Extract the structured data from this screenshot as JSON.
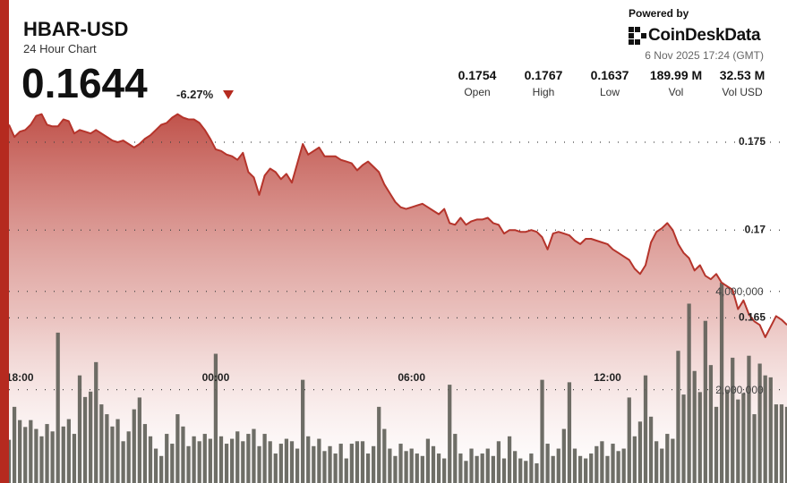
{
  "header": {
    "title": "HBAR-USD",
    "subtitle": "24 Hour Chart",
    "price": "0.1644",
    "change": "-6.27%",
    "powered_by": "Powered by",
    "brand_a": "CoinDesk",
    "brand_b": "Data",
    "timestamp": "6 Nov 2025 17:24 (GMT)"
  },
  "stats": [
    {
      "value": "0.1754",
      "label": "Open"
    },
    {
      "value": "0.1767",
      "label": "High"
    },
    {
      "value": "0.1637",
      "label": "Low"
    },
    {
      "value": "189.99 M",
      "label": "Vol"
    },
    {
      "value": "32.53 M",
      "label": "Vol USD"
    }
  ],
  "chart_data": {
    "type": "line",
    "categories": [
      null,
      null,
      "18:00",
      null,
      null,
      null,
      null,
      null,
      null,
      null,
      null,
      null,
      null,
      null,
      null,
      null,
      null,
      null,
      null,
      null,
      null,
      null,
      null,
      null,
      null,
      null,
      null,
      null,
      null,
      null,
      null,
      null,
      null,
      null,
      null,
      null,
      null,
      null,
      "00:00",
      null,
      null,
      null,
      null,
      null,
      null,
      null,
      null,
      null,
      null,
      null,
      null,
      null,
      null,
      null,
      null,
      null,
      null,
      null,
      null,
      null,
      null,
      null,
      null,
      null,
      null,
      null,
      null,
      null,
      null,
      null,
      null,
      null,
      null,
      null,
      "06:00",
      null,
      null,
      null,
      null,
      null,
      null,
      null,
      null,
      null,
      null,
      null,
      null,
      null,
      null,
      null,
      null,
      null,
      null,
      null,
      null,
      null,
      null,
      null,
      null,
      null,
      null,
      null,
      null,
      null,
      null,
      null,
      null,
      null,
      null,
      null,
      "12:00",
      null,
      null,
      null,
      null,
      null,
      null,
      null,
      null,
      null,
      null,
      null,
      null,
      null,
      null,
      null,
      null,
      null,
      null,
      null,
      null,
      null,
      null,
      null,
      null,
      null,
      null,
      null,
      null,
      null,
      null,
      null,
      null,
      null
    ],
    "series": [
      {
        "type": "line",
        "color": "#b5342b",
        "values": [
          0.176,
          0.1753,
          0.1756,
          0.1757,
          0.176,
          0.1765,
          0.1766,
          0.176,
          0.1759,
          0.1759,
          0.1763,
          0.1762,
          0.1755,
          0.1757,
          0.1756,
          0.1755,
          0.1757,
          0.1755,
          0.1753,
          0.1751,
          0.175,
          0.1751,
          0.1749,
          0.1747,
          0.1749,
          0.1752,
          0.1754,
          0.1757,
          0.176,
          0.1761,
          0.1764,
          0.1766,
          0.1764,
          0.1763,
          0.1763,
          0.1761,
          0.1757,
          0.1752,
          0.1746,
          0.1745,
          0.1743,
          0.1742,
          0.174,
          0.1744,
          0.1733,
          0.173,
          0.172,
          0.1731,
          0.1735,
          0.1733,
          0.1729,
          0.1732,
          0.1727,
          0.1738,
          0.1749,
          0.1743,
          0.1745,
          0.1747,
          0.1742,
          0.1742,
          0.1742,
          0.174,
          0.1739,
          0.1738,
          0.1734,
          0.1737,
          0.1739,
          0.1736,
          0.1733,
          0.1726,
          0.1721,
          0.1716,
          0.1713,
          0.1712,
          0.1713,
          0.1714,
          0.1715,
          0.1713,
          0.1711,
          0.1709,
          0.1712,
          0.1704,
          0.1703,
          0.1707,
          0.1703,
          0.1705,
          0.1706,
          0.1706,
          0.1707,
          0.1704,
          0.1703,
          0.1698,
          0.17,
          0.17,
          0.1699,
          0.1699,
          0.17,
          0.1699,
          0.1696,
          0.1689,
          0.1698,
          0.1699,
          0.1698,
          0.1697,
          0.1694,
          0.1692,
          0.1695,
          0.1695,
          0.1694,
          0.1693,
          0.1692,
          0.1689,
          0.1687,
          0.1685,
          0.1683,
          0.1678,
          0.1675,
          0.168,
          0.1693,
          0.1699,
          0.1701,
          0.1704,
          0.17,
          0.1692,
          0.1687,
          0.1684,
          0.1677,
          0.168,
          0.1674,
          0.1672,
          0.1675,
          0.167,
          0.1668,
          0.1666,
          0.1655,
          0.166,
          0.1652,
          0.1648,
          0.1646,
          0.1639,
          0.1645,
          0.1651,
          0.1649,
          0.1646
        ]
      },
      {
        "type": "bar",
        "axis": "y2",
        "color": "#5e5e57",
        "values": [
          980000,
          1650000,
          1380000,
          1240000,
          1380000,
          1200000,
          1050000,
          1300000,
          1150000,
          3160000,
          1250000,
          1400000,
          1100000,
          2290000,
          1850000,
          1960000,
          2560000,
          1700000,
          1500000,
          1250000,
          1400000,
          950000,
          1150000,
          1600000,
          1840000,
          1300000,
          1050000,
          800000,
          650000,
          1100000,
          900000,
          1500000,
          1250000,
          850000,
          1050000,
          950000,
          1100000,
          1000000,
          2730000,
          1050000,
          900000,
          1000000,
          1150000,
          950000,
          1100000,
          1200000,
          850000,
          1100000,
          950000,
          700000,
          900000,
          1000000,
          950000,
          800000,
          2200000,
          1050000,
          850000,
          1000000,
          750000,
          850000,
          700000,
          900000,
          600000,
          900000,
          950000,
          950000,
          700000,
          850000,
          1650000,
          1200000,
          800000,
          650000,
          900000,
          750000,
          800000,
          700000,
          650000,
          1000000,
          850000,
          700000,
          600000,
          2100000,
          1100000,
          700000,
          550000,
          800000,
          650000,
          700000,
          800000,
          650000,
          950000,
          600000,
          1050000,
          750000,
          600000,
          550000,
          700000,
          500000,
          2200000,
          900000,
          650000,
          800000,
          1200000,
          2150000,
          800000,
          650000,
          600000,
          700000,
          850000,
          950000,
          650000,
          900000,
          750000,
          800000,
          1840000,
          1050000,
          1350000,
          2290000,
          1450000,
          950000,
          800000,
          1100000,
          1000000,
          2790000,
          1900000,
          3750000,
          2380000,
          1950000,
          3400000,
          2500000,
          1650000,
          4180000,
          2000000,
          2650000,
          1800000,
          1930000,
          2690000,
          1500000,
          2530000,
          2290000,
          2250000,
          1700000,
          1700000,
          1650000
        ]
      }
    ],
    "ylim": [
      0.1556,
      0.1777
    ],
    "yticks": [
      0.165,
      0.17,
      0.175
    ],
    "y2lim": [
      100000,
      8000000
    ],
    "y2ticks": [
      {
        "value": 2000000,
        "label": "2,000,000"
      },
      {
        "value": 4000000,
        "label": "4,000,000"
      }
    ],
    "grid": true
  }
}
